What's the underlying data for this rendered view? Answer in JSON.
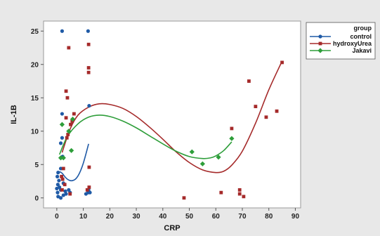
{
  "chart_data": {
    "type": "scatter",
    "xlabel": "CRP",
    "ylabel": "IL-1B",
    "xlim": [
      -5,
      92
    ],
    "ylim": [
      -1.5,
      26.5
    ],
    "xticks": [
      0,
      10,
      20,
      30,
      40,
      50,
      60,
      70,
      80,
      90
    ],
    "yticks": [
      0,
      5,
      10,
      15,
      20,
      25
    ],
    "grid": false,
    "legend": {
      "title": "group",
      "position": "top-right",
      "entries": [
        "control",
        "hydroxyUrea",
        "Jakavi"
      ]
    },
    "series": [
      {
        "name": "control",
        "color": "#1f5aa6",
        "marker": "circle",
        "points": [
          [
            2,
            25
          ],
          [
            11.8,
            25
          ],
          [
            12.2,
            13.8
          ],
          [
            2,
            12.6
          ],
          [
            2,
            9
          ],
          [
            1.5,
            8.2
          ],
          [
            2.2,
            6.2
          ],
          [
            1.5,
            4.4
          ],
          [
            0.5,
            3.8
          ],
          [
            0.2,
            3.2
          ],
          [
            0.8,
            2.6
          ],
          [
            0.4,
            2
          ],
          [
            2.5,
            2.2
          ],
          [
            1,
            1.6
          ],
          [
            0,
            1.4
          ],
          [
            1.5,
            1.2
          ],
          [
            0.3,
            0.8
          ],
          [
            3.2,
            1
          ],
          [
            4.5,
            1.2
          ],
          [
            3.5,
            0.6
          ],
          [
            5,
            0.8
          ],
          [
            2.5,
            0.4
          ],
          [
            0.5,
            0.2
          ],
          [
            1.5,
            0
          ],
          [
            11,
            0.6
          ],
          [
            11.8,
            0.8
          ],
          [
            12.5,
            0.8
          ],
          [
            12,
            1.2
          ]
        ],
        "trend": [
          [
            0,
            3.6
          ],
          [
            1,
            3.9
          ],
          [
            2,
            3.7
          ],
          [
            3,
            3.2
          ],
          [
            4,
            2.8
          ],
          [
            5,
            2.6
          ],
          [
            6,
            2.6
          ],
          [
            7,
            2.8
          ],
          [
            8,
            3.3
          ],
          [
            9,
            4.1
          ],
          [
            10,
            5.2
          ],
          [
            11,
            6.6
          ],
          [
            12,
            8.1
          ]
        ]
      },
      {
        "name": "hydroxyUrea",
        "color": "#a52a2a",
        "marker": "square",
        "points": [
          [
            4.5,
            22.5
          ],
          [
            12,
            23
          ],
          [
            12,
            19.5
          ],
          [
            12,
            18.8
          ],
          [
            3.5,
            16
          ],
          [
            4,
            15
          ],
          [
            6.5,
            12.6
          ],
          [
            3.5,
            12
          ],
          [
            5.2,
            11
          ],
          [
            12.2,
            4.6
          ],
          [
            3.8,
            9
          ],
          [
            4.2,
            9.5
          ],
          [
            5.8,
            11.5
          ],
          [
            2.5,
            4.4
          ],
          [
            1.8,
            3.2
          ],
          [
            2.2,
            2.8
          ],
          [
            3,
            2
          ],
          [
            2,
            1.2
          ],
          [
            5,
            0.6
          ],
          [
            12.2,
            1.6
          ],
          [
            11.5,
            1.2
          ],
          [
            48,
            0
          ],
          [
            62,
            0.8
          ],
          [
            69,
            0.6
          ],
          [
            70.5,
            0.2
          ],
          [
            69,
            1.2
          ],
          [
            66,
            10.4
          ],
          [
            72.5,
            17.5
          ],
          [
            75,
            13.7
          ],
          [
            79,
            12.1
          ],
          [
            83,
            13
          ],
          [
            85,
            20.3
          ]
        ],
        "trend": [
          [
            2,
            6.8
          ],
          [
            5,
            10.3
          ],
          [
            8,
            12.4
          ],
          [
            12,
            13.6
          ],
          [
            16,
            14.1
          ],
          [
            20,
            14
          ],
          [
            25,
            13.4
          ],
          [
            30,
            12.2
          ],
          [
            35,
            10.6
          ],
          [
            40,
            8.8
          ],
          [
            45,
            6.9
          ],
          [
            50,
            5.3
          ],
          [
            55,
            4.2
          ],
          [
            60,
            3.8
          ],
          [
            63,
            4
          ],
          [
            66,
            4.9
          ],
          [
            70,
            7
          ],
          [
            75,
            11.2
          ],
          [
            80,
            16.2
          ],
          [
            85,
            20.5
          ]
        ]
      },
      {
        "name": "Jakavi",
        "color": "#2e9e3a",
        "marker": "diamond",
        "points": [
          [
            2,
            11
          ],
          [
            4.5,
            10
          ],
          [
            6,
            11.8
          ],
          [
            5.5,
            7.1
          ],
          [
            1.5,
            6
          ],
          [
            2.5,
            6
          ],
          [
            51,
            6.9
          ],
          [
            55,
            5.1
          ],
          [
            61,
            6.1
          ],
          [
            66,
            8.9
          ]
        ],
        "trend": [
          [
            1,
            6.5
          ],
          [
            4,
            9.2
          ],
          [
            8,
            11.1
          ],
          [
            12,
            12.1
          ],
          [
            16,
            12.4
          ],
          [
            20,
            12.2
          ],
          [
            25,
            11.5
          ],
          [
            30,
            10.5
          ],
          [
            35,
            9.3
          ],
          [
            40,
            8.1
          ],
          [
            45,
            7
          ],
          [
            50,
            6.2
          ],
          [
            55,
            5.9
          ],
          [
            58,
            6
          ],
          [
            60,
            6.3
          ],
          [
            63,
            7.1
          ],
          [
            66,
            8.4
          ]
        ]
      }
    ]
  }
}
